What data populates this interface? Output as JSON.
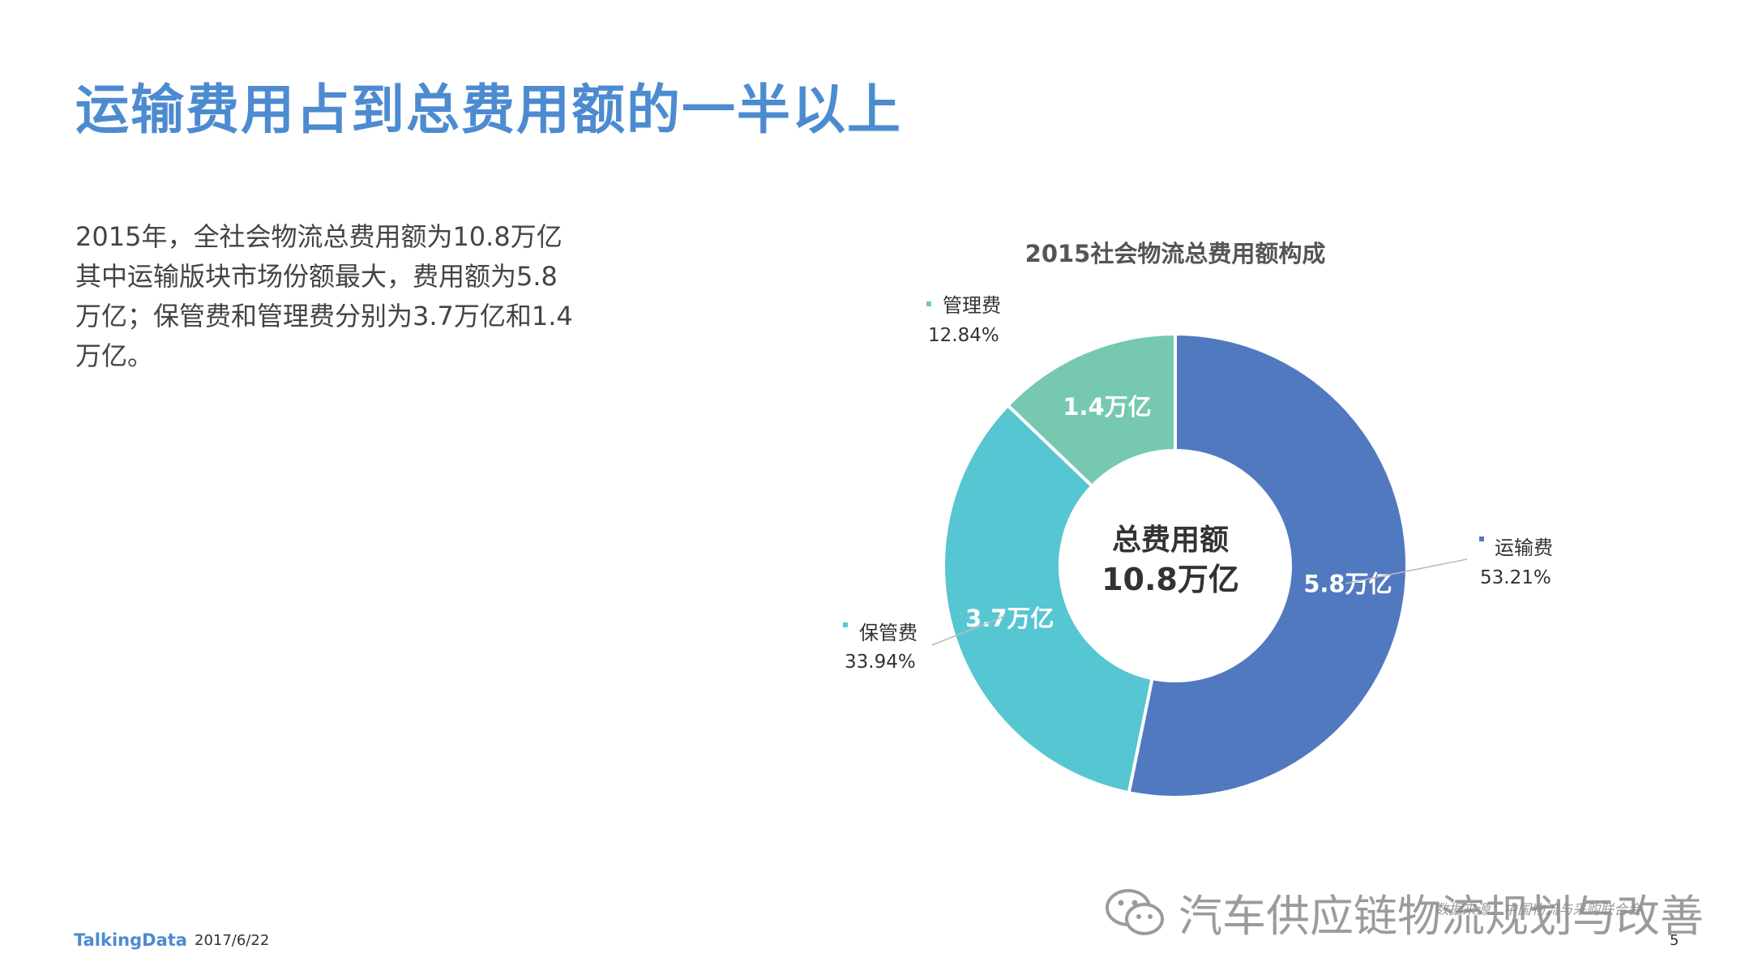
{
  "page": {
    "title": "运输费用占到总费用额的一半以上",
    "paragraph_lines": [
      "2015年，全社会物流总费用额为10.8万亿",
      "其中运输版块市场份额最大，费用额为5.8",
      "万亿；保管费和管理费分别为3.7万亿和1.4",
      "万亿。"
    ]
  },
  "chart_data": {
    "type": "pie",
    "title": "2015社会物流总费用额构成",
    "center_label": {
      "line1": "总费用额",
      "line2": "10.8万亿"
    },
    "slices": [
      {
        "name": "运输费",
        "value": 5.8,
        "value_label": "5.8万亿",
        "percent": 53.21,
        "percent_label": "53.21%",
        "color": "#5079bf"
      },
      {
        "name": "保管费",
        "value": 3.7,
        "value_label": "3.7万亿",
        "percent": 33.94,
        "percent_label": "33.94%",
        "color": "#56c6d2"
      },
      {
        "name": "管理费",
        "value": 1.4,
        "value_label": "1.4万亿",
        "percent": 12.84,
        "percent_label": "12.84%",
        "color": "#76c9b0"
      }
    ],
    "legend": "callouts"
  },
  "footer": {
    "logo": "TalkingData",
    "date": "2017/6/22",
    "page_number": "5"
  },
  "watermark": {
    "text": "汽车供应链物流规划与改善",
    "source_note": "数据来源：中国物流与采购联合会"
  }
}
